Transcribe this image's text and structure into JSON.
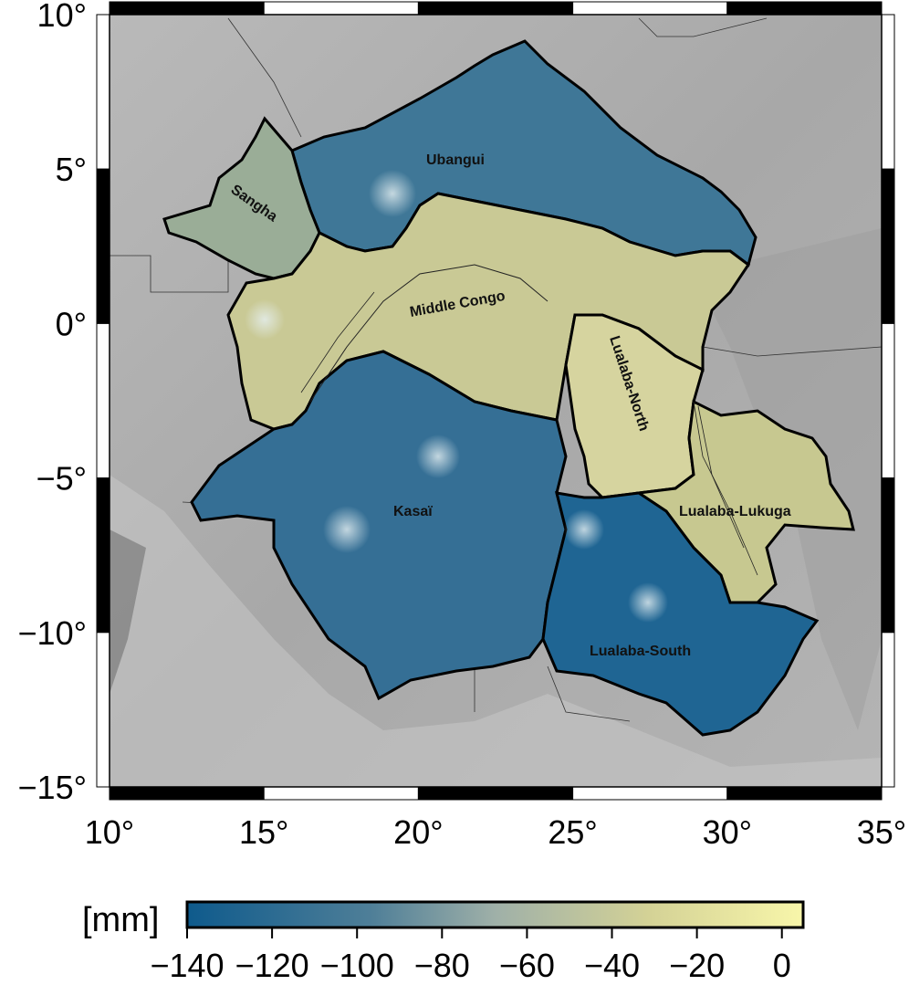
{
  "map": {
    "projection": "geographic",
    "lon_range": [
      10,
      35
    ],
    "lat_range": [
      -15,
      10
    ],
    "x_ticks": [
      "10°",
      "15°",
      "20°",
      "25°",
      "30°",
      "35°"
    ],
    "y_ticks": [
      "10°",
      "5°",
      "0°",
      "−5°",
      "−10°",
      "−15°"
    ],
    "basemap": "shaded relief (grey)",
    "basins": [
      {
        "name": "Ubangui",
        "value_mm": -120
      },
      {
        "name": "Sangha",
        "value_mm": -90
      },
      {
        "name": "Middle Congo",
        "value_mm": -55
      },
      {
        "name": "Lualaba-North",
        "value_mm": -45
      },
      {
        "name": "Lualaba-Lukuga",
        "value_mm": -50
      },
      {
        "name": "Kasaï",
        "value_mm": -115
      },
      {
        "name": "Lualaba-South",
        "value_mm": -130
      }
    ]
  },
  "colorbar": {
    "unit": "[mm]",
    "range": [
      -140,
      5
    ],
    "tick_labels": [
      "−140",
      "−120",
      "−100",
      "−80",
      "−60",
      "−40",
      "−20",
      "0"
    ],
    "colors": [
      "#0e5a8c",
      "#3e7a9c",
      "#8fa8a8",
      "#c8c890",
      "#f6f4a8"
    ]
  }
}
